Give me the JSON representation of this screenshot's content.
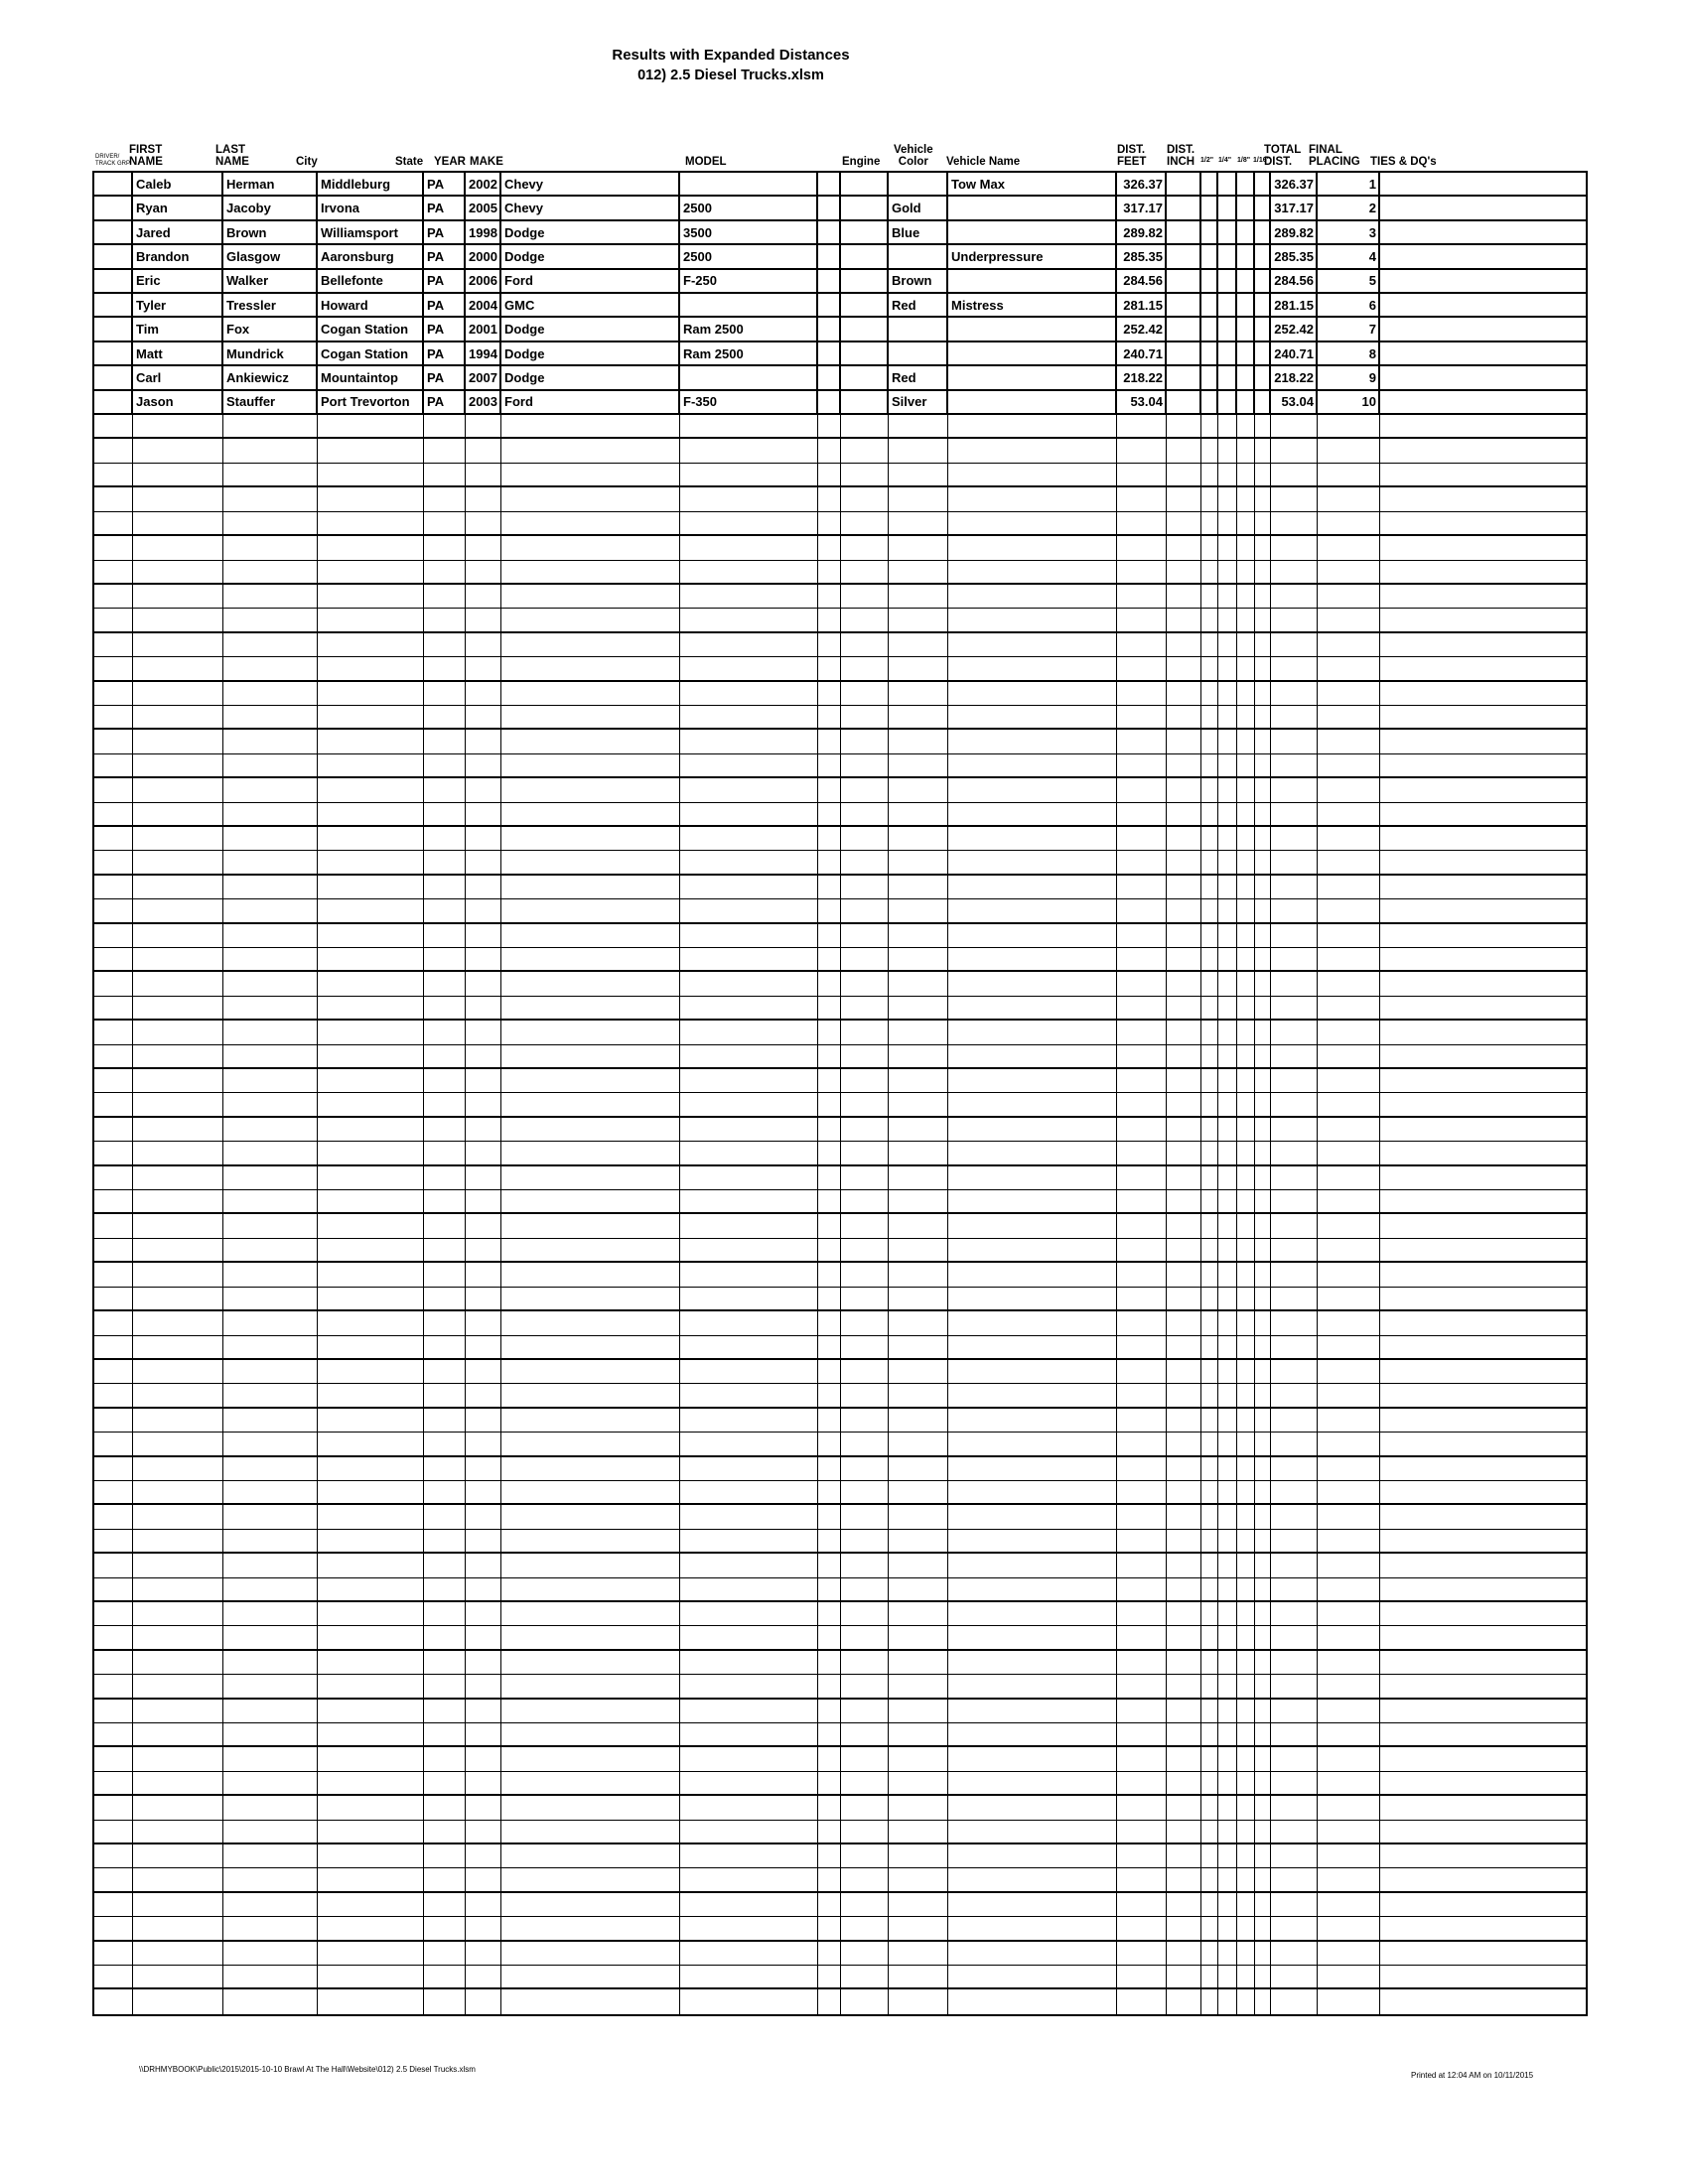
{
  "page": {
    "title_line1": "Results with Expanded Distances",
    "title_line2": "012) 2.5 Diesel Trucks.xlsm",
    "footer_left": "\\\\DRHMYBOOK\\Public\\2015\\2015-10-10 Brawl At The Hall\\Website\\012) 2.5 Diesel Trucks.xlsm",
    "footer_right": "Printed at 12:04 AM on 10/11/2015"
  },
  "table": {
    "header_labels": {
      "grp": "DRIVER/\nTRACK GRP",
      "first": "FIRST\nNAME",
      "last": "LAST\nNAME",
      "city": "City",
      "state": "State",
      "year": "YEAR",
      "make": "MAKE",
      "model": "MODEL",
      "engine": "Engine",
      "vehicle_color": "Vehicle\nColor",
      "vehicle_name": "Vehicle Name",
      "dist_feet": "DIST.\nFEET",
      "dist_inch": "DIST.\nINCH",
      "half": "1/2\"",
      "quarter": "1/4\"",
      "eighth": "1/8\"",
      "sixteenth": "1/16\"",
      "total_dist": "TOTAL\nDIST.",
      "final_placing": "FINAL\nPLACING",
      "ties": "TIES & DQ's"
    },
    "rows": [
      {
        "grp": "",
        "first": "Caleb",
        "last": "Herman",
        "city": "Middleburg",
        "state": "PA",
        "year": "2002",
        "make": "Chevy",
        "model": "",
        "blank": "",
        "engine": "",
        "color": "",
        "vehicle_name": "Tow Max",
        "dist_feet": "326.37",
        "dist_inch": "",
        "half": "",
        "quarter": "",
        "eighth": "",
        "sixteenth": "",
        "total_dist": "326.37",
        "placing": "1",
        "ties": ""
      },
      {
        "grp": "",
        "first": "Ryan",
        "last": "Jacoby",
        "city": "Irvona",
        "state": "PA",
        "year": "2005",
        "make": "Chevy",
        "model": "2500",
        "blank": "",
        "engine": "",
        "color": "Gold",
        "vehicle_name": "",
        "dist_feet": "317.17",
        "dist_inch": "",
        "half": "",
        "quarter": "",
        "eighth": "",
        "sixteenth": "",
        "total_dist": "317.17",
        "placing": "2",
        "ties": ""
      },
      {
        "grp": "",
        "first": "Jared",
        "last": "Brown",
        "city": "Williamsport",
        "state": "PA",
        "year": "1998",
        "make": "Dodge",
        "model": "3500",
        "blank": "",
        "engine": "",
        "color": "Blue",
        "vehicle_name": "",
        "dist_feet": "289.82",
        "dist_inch": "",
        "half": "",
        "quarter": "",
        "eighth": "",
        "sixteenth": "",
        "total_dist": "289.82",
        "placing": "3",
        "ties": ""
      },
      {
        "grp": "",
        "first": "Brandon",
        "last": "Glasgow",
        "city": "Aaronsburg",
        "state": "PA",
        "year": "2000",
        "make": "Dodge",
        "model": "2500",
        "blank": "",
        "engine": "",
        "color": "",
        "vehicle_name": "Underpressure",
        "dist_feet": "285.35",
        "dist_inch": "",
        "half": "",
        "quarter": "",
        "eighth": "",
        "sixteenth": "",
        "total_dist": "285.35",
        "placing": "4",
        "ties": ""
      },
      {
        "grp": "",
        "first": "Eric",
        "last": "Walker",
        "city": "Bellefonte",
        "state": "PA",
        "year": "2006",
        "make": "Ford",
        "model": "F-250",
        "blank": "",
        "engine": "",
        "color": "Brown",
        "vehicle_name": "",
        "dist_feet": "284.56",
        "dist_inch": "",
        "half": "",
        "quarter": "",
        "eighth": "",
        "sixteenth": "",
        "total_dist": "284.56",
        "placing": "5",
        "ties": ""
      },
      {
        "grp": "",
        "first": "Tyler",
        "last": "Tressler",
        "city": "Howard",
        "state": "PA",
        "year": "2004",
        "make": "GMC",
        "model": "",
        "blank": "",
        "engine": "",
        "color": "Red",
        "vehicle_name": "Mistress",
        "dist_feet": "281.15",
        "dist_inch": "",
        "half": "",
        "quarter": "",
        "eighth": "",
        "sixteenth": "",
        "total_dist": "281.15",
        "placing": "6",
        "ties": ""
      },
      {
        "grp": "",
        "first": "Tim",
        "last": "Fox",
        "city": "Cogan Station",
        "state": "PA",
        "year": "2001",
        "make": "Dodge",
        "model": "Ram 2500",
        "blank": "",
        "engine": "",
        "color": "",
        "vehicle_name": "",
        "dist_feet": "252.42",
        "dist_inch": "",
        "half": "",
        "quarter": "",
        "eighth": "",
        "sixteenth": "",
        "total_dist": "252.42",
        "placing": "7",
        "ties": ""
      },
      {
        "grp": "",
        "first": "Matt",
        "last": "Mundrick",
        "city": "Cogan Station",
        "state": "PA",
        "year": "1994",
        "make": "Dodge",
        "model": "Ram 2500",
        "blank": "",
        "engine": "",
        "color": "",
        "vehicle_name": "",
        "dist_feet": "240.71",
        "dist_inch": "",
        "half": "",
        "quarter": "",
        "eighth": "",
        "sixteenth": "",
        "total_dist": "240.71",
        "placing": "8",
        "ties": ""
      },
      {
        "grp": "",
        "first": "Carl",
        "last": "Ankiewicz",
        "city": "Mountaintop",
        "state": "PA",
        "year": "2007",
        "make": "Dodge",
        "model": "",
        "blank": "",
        "engine": "",
        "color": "Red",
        "vehicle_name": "",
        "dist_feet": "218.22",
        "dist_inch": "",
        "half": "",
        "quarter": "",
        "eighth": "",
        "sixteenth": "",
        "total_dist": "218.22",
        "placing": "9",
        "ties": ""
      },
      {
        "grp": "",
        "first": "Jason",
        "last": "Stauffer",
        "city": "Port Trevorton",
        "state": "PA",
        "year": "2003",
        "make": "Ford",
        "model": "F-350",
        "blank": "",
        "engine": "",
        "color": "Silver",
        "vehicle_name": "",
        "dist_feet": "53.04",
        "dist_inch": "",
        "half": "",
        "quarter": "",
        "eighth": "",
        "sixteenth": "",
        "total_dist": "53.04",
        "placing": "10",
        "ties": ""
      }
    ],
    "empty_row_count": 66
  }
}
